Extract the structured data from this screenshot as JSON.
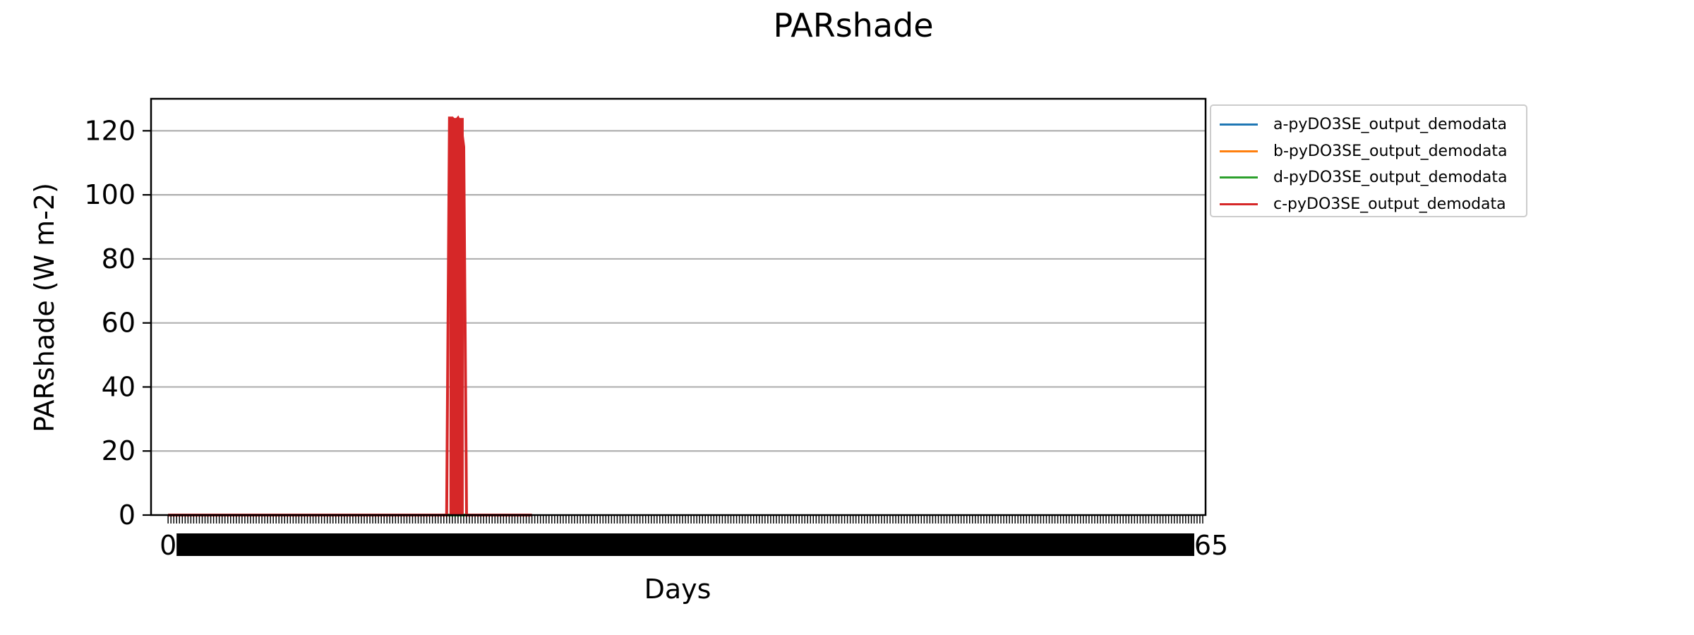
{
  "chart_data": {
    "type": "line",
    "title": "PARshade",
    "xlabel": "Days",
    "ylabel": "PARshade (W m-2)",
    "ylim": [
      0,
      130
    ],
    "xlim": [
      -6,
      365
    ],
    "yticks": [
      0,
      20,
      40,
      60,
      80,
      100,
      120
    ],
    "grid": "y",
    "legend_position": "outside-right-top",
    "x_tick_count": 365,
    "x_tick_labels": [
      "0",
      "365"
    ],
    "series": [
      {
        "name": "a-pyDO3SE_output_demodata",
        "color": "#1f77b4",
        "points": [
          [
            0,
            0
          ],
          [
            128,
            0
          ]
        ]
      },
      {
        "name": "b-pyDO3SE_output_demodata",
        "color": "#ff7f0e",
        "points": [
          [
            0,
            0
          ],
          [
            128,
            0
          ]
        ]
      },
      {
        "name": "d-pyDO3SE_output_demodata",
        "color": "#2ca02c",
        "points": [
          [
            0,
            0
          ],
          [
            128,
            0
          ]
        ]
      },
      {
        "name": "c-pyDO3SE_output_demodata",
        "color": "#d62728",
        "points": [
          [
            0,
            0
          ],
          [
            98,
            0
          ],
          [
            99,
            124
          ],
          [
            100,
            124
          ],
          [
            101,
            123
          ],
          [
            102,
            124
          ],
          [
            103,
            122
          ],
          [
            104,
            115
          ],
          [
            105,
            0
          ],
          [
            128,
            0
          ]
        ]
      }
    ]
  }
}
